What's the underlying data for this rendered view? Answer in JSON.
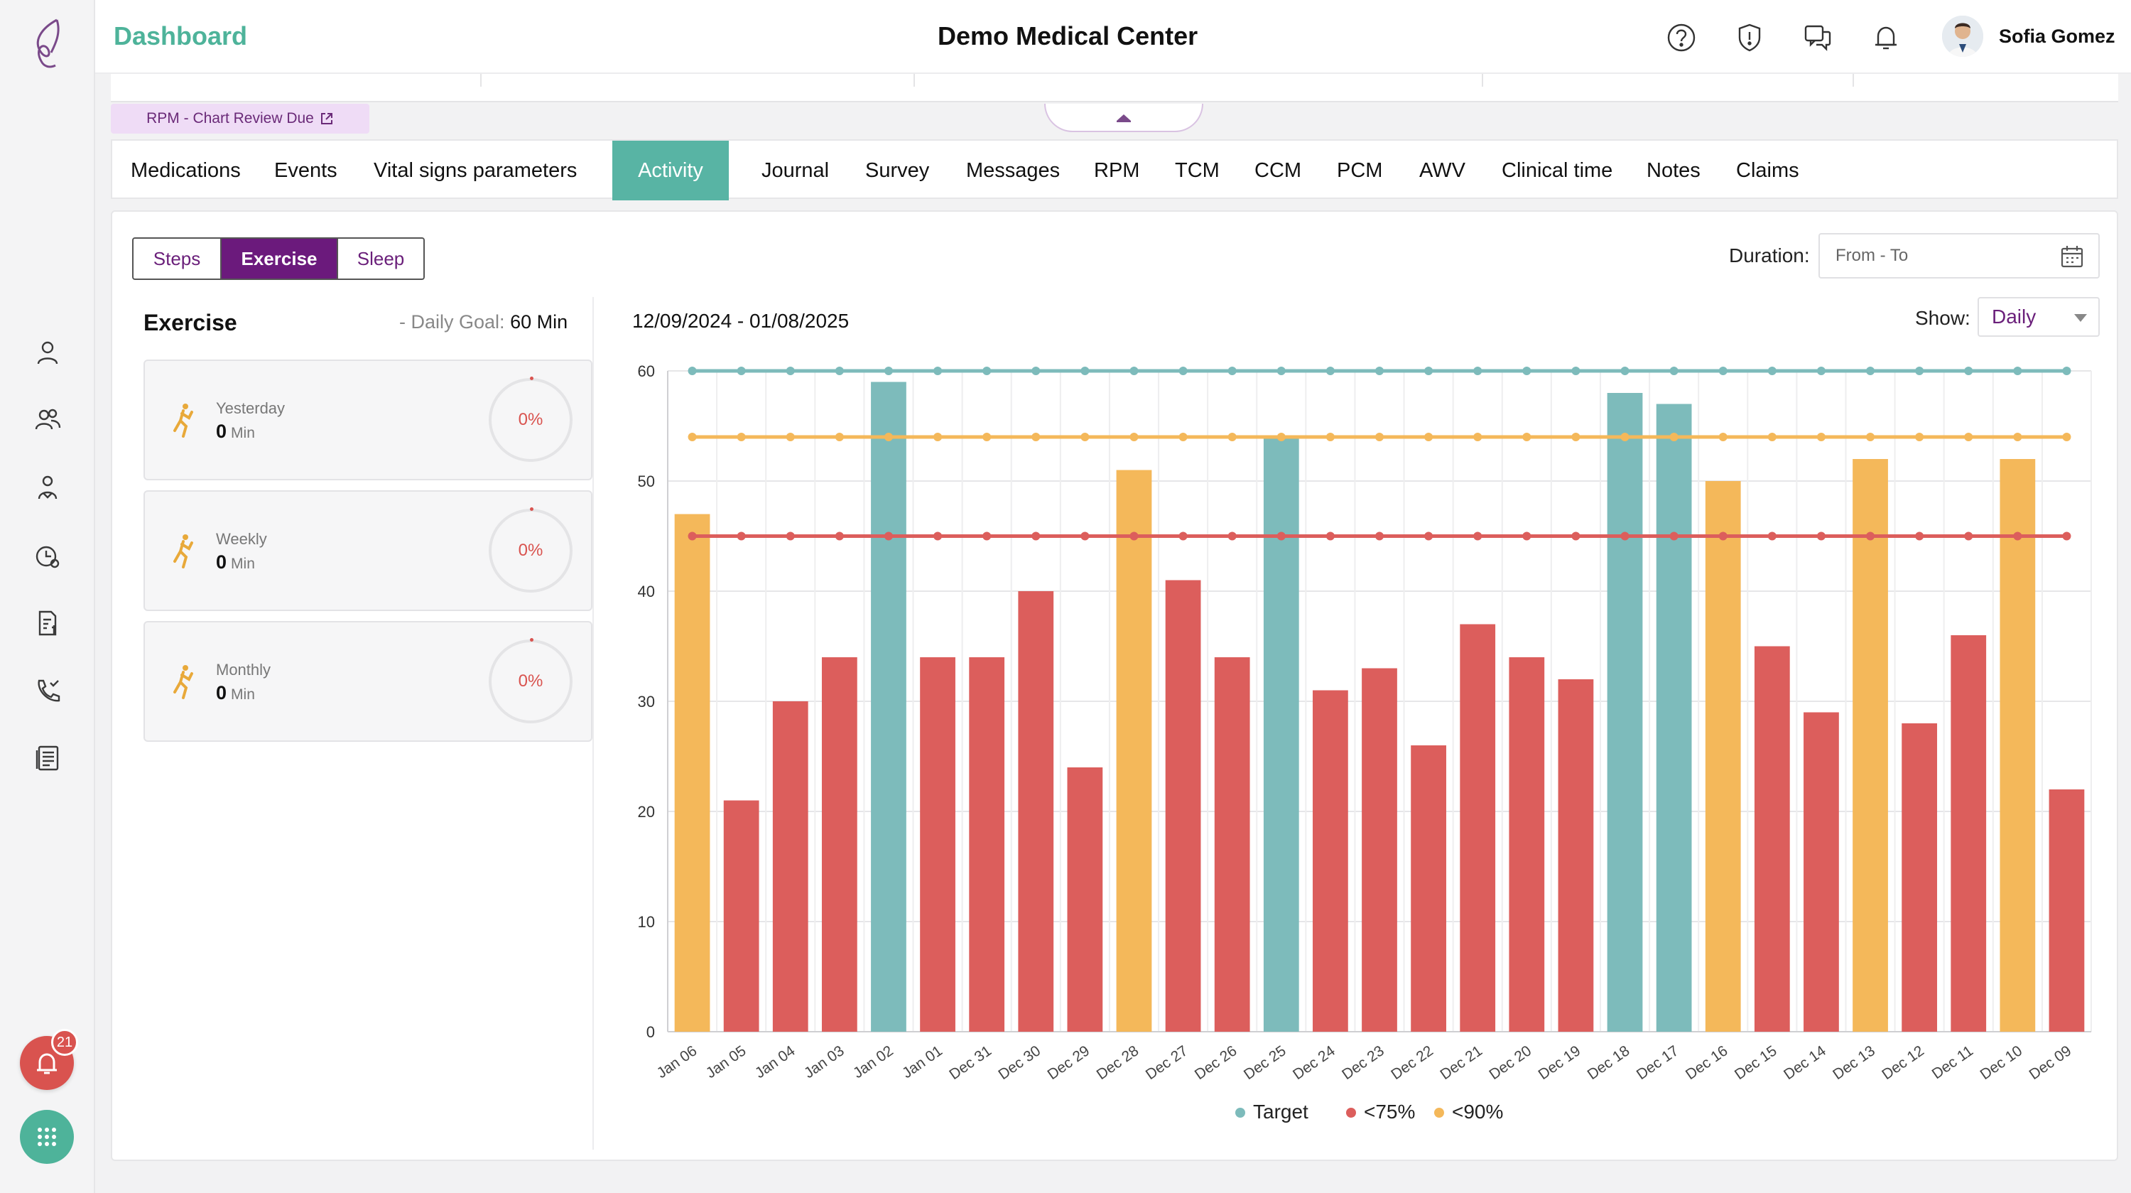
{
  "header": {
    "dashboard_title": "Dashboard",
    "center_title": "Demo Medical Center",
    "user_name": "Sofia Gomez"
  },
  "sidebar": {
    "alarm_badge_count": "21",
    "icons": [
      "user-icon",
      "group-icon",
      "caregiver-icon",
      "clock-user-icon",
      "billing-icon",
      "phone-icon",
      "list-icon"
    ]
  },
  "review_tag": "RPM - Chart Review Due",
  "tabs": [
    "Medications",
    "Events",
    "Vital signs parameters",
    "Activity",
    "Journal",
    "Survey",
    "Messages",
    "RPM",
    "TCM",
    "CCM",
    "PCM",
    "AWV",
    "Clinical time",
    "Notes",
    "Claims"
  ],
  "active_tab": "Activity",
  "segments": [
    "Steps",
    "Exercise",
    "Sleep"
  ],
  "active_segment": "Exercise",
  "duration": {
    "label": "Duration:",
    "placeholder": "From - To"
  },
  "exercise": {
    "title": "Exercise",
    "goal_prefix": "- Daily Goal:",
    "goal_value": "60 Min",
    "cards": [
      {
        "label": "Yesterday",
        "value": "0",
        "unit": "Min",
        "percent": "0%"
      },
      {
        "label": "Weekly",
        "value": "0",
        "unit": "Min",
        "percent": "0%"
      },
      {
        "label": "Monthly",
        "value": "0",
        "unit": "Min",
        "percent": "0%"
      }
    ]
  },
  "date_range": "12/09/2024 - 01/08/2025",
  "show": {
    "label": "Show:",
    "value": "Daily"
  },
  "colors": {
    "target": "#7dbbbb",
    "under75": "#dc5e5c",
    "under90": "#f4b85a",
    "accent": "#4eb39a",
    "purple": "#6b1a7c"
  },
  "chart_data": {
    "type": "bar",
    "categories": [
      "Jan 06",
      "Jan 05",
      "Jan 04",
      "Jan 03",
      "Jan 02",
      "Jan 01",
      "Dec 31",
      "Dec 30",
      "Dec 29",
      "Dec 28",
      "Dec 27",
      "Dec 26",
      "Dec 25",
      "Dec 24",
      "Dec 23",
      "Dec 22",
      "Dec 21",
      "Dec 20",
      "Dec 19",
      "Dec 18",
      "Dec 17",
      "Dec 16",
      "Dec 15",
      "Dec 14",
      "Dec 13",
      "Dec 12",
      "Dec 11",
      "Dec 10",
      "Dec 09"
    ],
    "values": [
      47,
      21,
      30,
      34,
      59,
      34,
      34,
      40,
      24,
      51,
      41,
      34,
      54,
      31,
      33,
      26,
      37,
      34,
      32,
      58,
      57,
      50,
      35,
      29,
      52,
      28,
      36,
      52,
      22
    ],
    "bar_class": [
      "<90%",
      "<75%",
      "<75%",
      "<75%",
      "Target",
      "<75%",
      "<75%",
      "<75%",
      "<75%",
      "<90%",
      "<75%",
      "<75%",
      "Target",
      "<75%",
      "<75%",
      "<75%",
      "<75%",
      "<75%",
      "<75%",
      "Target",
      "Target",
      "<90%",
      "<75%",
      "<75%",
      "<90%",
      "<75%",
      "<75%",
      "<90%",
      "<75%"
    ],
    "reference_lines": [
      {
        "name": "Target",
        "value": 60
      },
      {
        "name": "<90%",
        "value": 54
      },
      {
        "name": "<75%",
        "value": 45
      }
    ],
    "ylim": [
      0,
      60
    ],
    "yticks": [
      0,
      10,
      20,
      30,
      40,
      50,
      60
    ],
    "grid": true,
    "legend": [
      "Target",
      "<75%",
      "<90%"
    ],
    "legend_position": "bottom"
  }
}
